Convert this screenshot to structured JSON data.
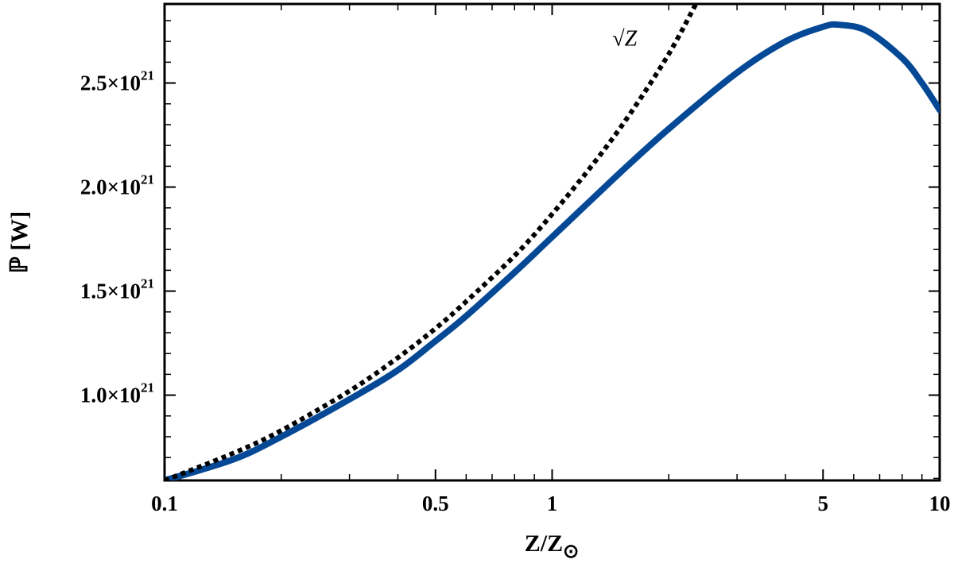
{
  "chart_data": {
    "type": "line",
    "xlabel": "Z/Z",
    "xlabel_sub": "⊙",
    "ylabel": "ℙ [W]",
    "x_scale": "log",
    "xlim": [
      0.1,
      10
    ],
    "ylim": [
      5.9e+20,
      2.88e+21
    ],
    "grid": false,
    "legend": "none",
    "x_ticks_major": [
      {
        "value": 0.1,
        "label": "0.1"
      },
      {
        "value": 0.5,
        "label": "0.5"
      },
      {
        "value": 1,
        "label": "1"
      },
      {
        "value": 5,
        "label": "5"
      },
      {
        "value": 10,
        "label": "10"
      }
    ],
    "x_ticks_minor": [
      0.2,
      0.3,
      0.4,
      0.6,
      0.7,
      0.8,
      0.9,
      2,
      3,
      4,
      6,
      7,
      8,
      9
    ],
    "y_ticks_major": [
      {
        "value": 1e+21,
        "mantissa": "1.0",
        "times": "×10",
        "exp": "21"
      },
      {
        "value": 1.5e+21,
        "mantissa": "1.5",
        "times": "×10",
        "exp": "21"
      },
      {
        "value": 2e+21,
        "mantissa": "2.0",
        "times": "×10",
        "exp": "21"
      },
      {
        "value": 2.5e+21,
        "mantissa": "2.5",
        "times": "×10",
        "exp": "21"
      }
    ],
    "y_ticks_minor": [
      6e+20,
      7e+20,
      8e+20,
      9e+20,
      1.1e+21,
      1.2e+21,
      1.3e+21,
      1.4e+21,
      1.6e+21,
      1.7e+21,
      1.8e+21,
      1.9e+21,
      2.1e+21,
      2.2e+21,
      2.3e+21,
      2.4e+21,
      2.6e+21,
      2.7e+21,
      2.8e+21
    ],
    "series": [
      {
        "style": "solid",
        "color": "#054996",
        "points": [
          [
            0.1,
            5.9e+20
          ],
          [
            0.15,
            6.9e+20
          ],
          [
            0.2,
            8e+20
          ],
          [
            0.3,
            9.8e+20
          ],
          [
            0.4,
            1.12e+21
          ],
          [
            0.5,
            1.26e+21
          ],
          [
            0.6,
            1.38e+21
          ],
          [
            0.8,
            1.59e+21
          ],
          [
            1.0,
            1.76e+21
          ],
          [
            1.5,
            2.07e+21
          ],
          [
            2.0,
            2.28e+21
          ],
          [
            3.0,
            2.55e+21
          ],
          [
            4.0,
            2.7e+21
          ],
          [
            5.0,
            2.77e+21
          ],
          [
            5.5,
            2.78e+21
          ],
          [
            6.5,
            2.75e+21
          ],
          [
            8.0,
            2.62e+21
          ],
          [
            9.0,
            2.5e+21
          ],
          [
            10.0,
            2.37e+21
          ]
        ]
      },
      {
        "style": "dotted",
        "color": "#000000",
        "annotation": {
          "x": 1.43,
          "y": 2.68e+21
        },
        "points": [
          [
            0.1,
            5.9e+20
          ],
          [
            0.15,
            7.2e+20
          ],
          [
            0.2,
            8.3e+20
          ],
          [
            0.3,
            1.02e+21
          ],
          [
            0.4,
            1.18e+21
          ],
          [
            0.5,
            1.32e+21
          ],
          [
            0.6,
            1.45e+21
          ],
          [
            0.8,
            1.67e+21
          ],
          [
            1.0,
            1.87e+21
          ],
          [
            1.3,
            2.13e+21
          ],
          [
            1.6,
            2.36e+21
          ],
          [
            2.0,
            2.64e+21
          ],
          [
            2.35,
            2.88e+21
          ]
        ]
      }
    ],
    "annotation_text": "√Z"
  }
}
